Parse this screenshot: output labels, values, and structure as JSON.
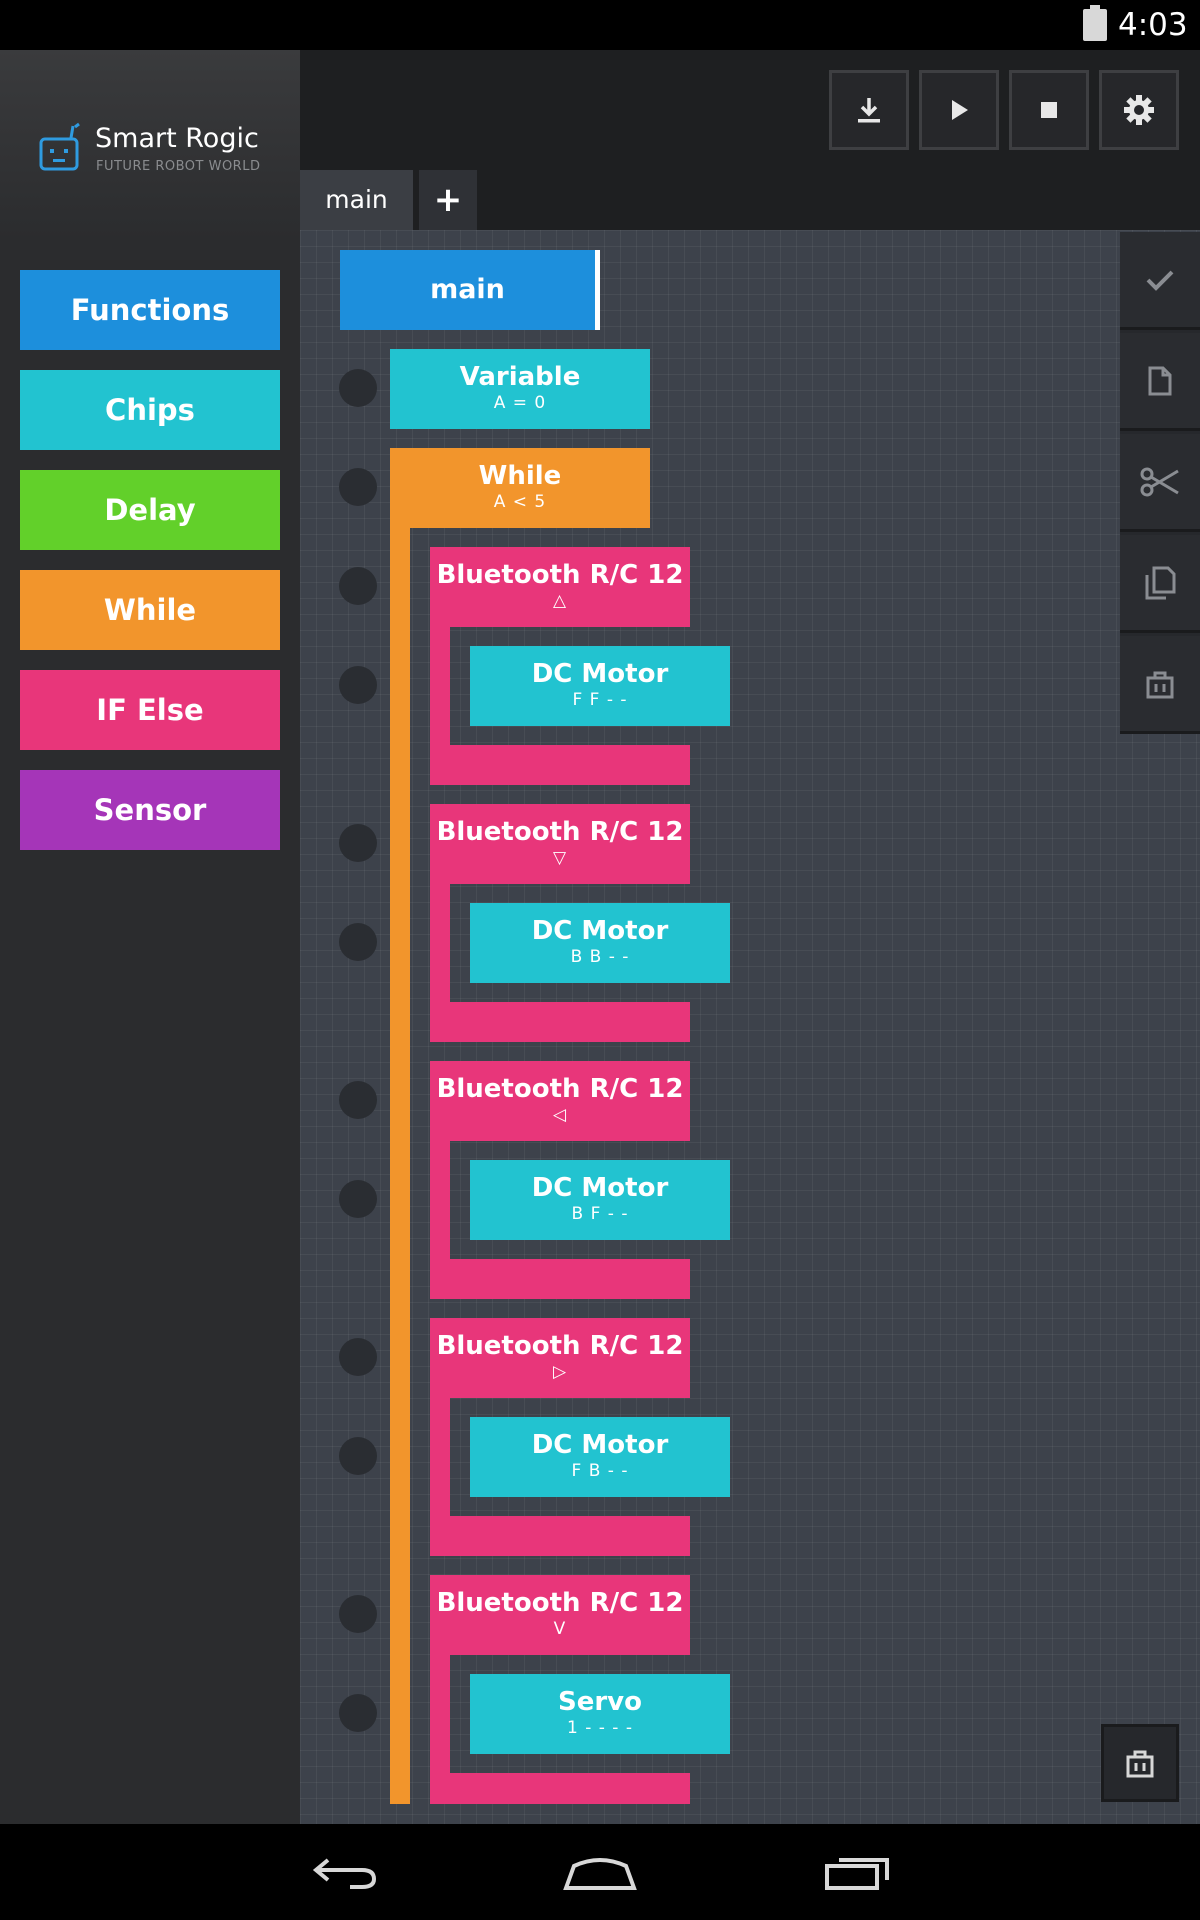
{
  "status_bar": {
    "time": "4:03"
  },
  "app": {
    "title": "Smart Rogic",
    "subtitle": "FUTURE ROBOT WORLD"
  },
  "palette": [
    {
      "label": "Functions",
      "color": "#1d8fdc"
    },
    {
      "label": "Chips",
      "color": "#22c3d0"
    },
    {
      "label": "Delay",
      "color": "#62d02a"
    },
    {
      "label": "While",
      "color": "#f2952c"
    },
    {
      "label": "IF Else",
      "color": "#e8367a"
    },
    {
      "label": "Sensor",
      "color": "#a535b8"
    }
  ],
  "toolbar": {
    "download": "download-icon",
    "play": "play-icon",
    "stop": "stop-icon",
    "settings": "gear-icon"
  },
  "tabs": {
    "main": "main",
    "add": "+"
  },
  "edit_tools": [
    "check-icon",
    "document-icon",
    "scissors-icon",
    "copy-icon",
    "trash-icon"
  ],
  "program": {
    "main": "main",
    "variable": {
      "title": "Variable",
      "value": "A = 0"
    },
    "while": {
      "title": "While",
      "condition": "A < 5"
    },
    "bluetooth_blocks": [
      {
        "title": "Bluetooth R/C 12",
        "param": "△",
        "child": {
          "title": "DC Motor",
          "param": "F  F  -  -"
        }
      },
      {
        "title": "Bluetooth R/C 12",
        "param": "▽",
        "child": {
          "title": "DC Motor",
          "param": "B  B  -  -"
        }
      },
      {
        "title": "Bluetooth R/C 12",
        "param": "◁",
        "child": {
          "title": "DC Motor",
          "param": "B  F  -  -"
        }
      },
      {
        "title": "Bluetooth R/C 12",
        "param": "▷",
        "child": {
          "title": "DC Motor",
          "param": "F  B  -  -"
        }
      },
      {
        "title": "Bluetooth R/C 12",
        "param": "V",
        "child": {
          "title": "Servo",
          "param": "1  -  -  -  -"
        }
      }
    ]
  },
  "colors": {
    "accent_blue": "#1d8fdc",
    "chip_teal": "#22c3d0",
    "while_orange": "#f2952c",
    "ifelse_pink": "#e8367a",
    "canvas": "#3d424b"
  }
}
